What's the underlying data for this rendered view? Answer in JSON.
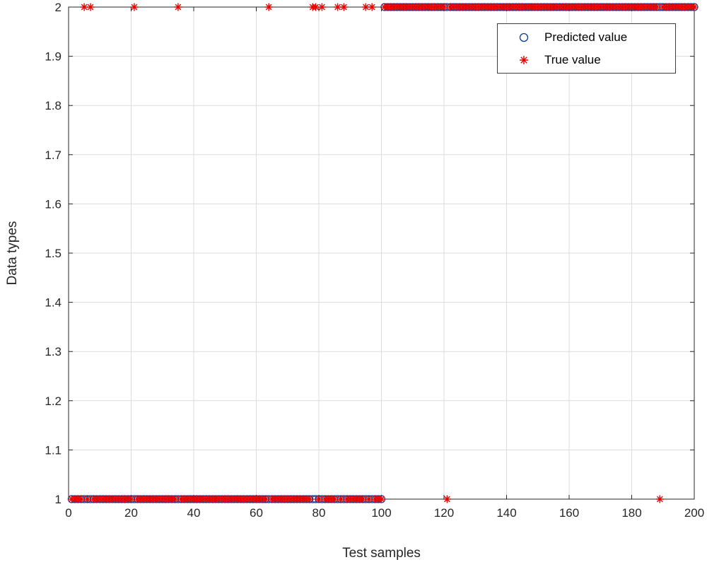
{
  "style": {
    "background": "#ffffff",
    "axis_color": "#262626",
    "grid_color": "#dcdcdc",
    "tick_label_color": "#262626",
    "legend_border_color": "#3c3c3c"
  },
  "chart_data": {
    "type": "scatter",
    "title": "",
    "xlabel": "Test samples",
    "ylabel": "Data types",
    "xlim": [
      0,
      200
    ],
    "ylim": [
      1,
      2
    ],
    "xticks": [
      0,
      20,
      40,
      60,
      80,
      100,
      120,
      140,
      160,
      180,
      200
    ],
    "xtick_labels": [
      "0",
      "20",
      "40",
      "60",
      "80",
      "100",
      "120",
      "140",
      "160",
      "180",
      "200"
    ],
    "yticks": [
      1,
      1.1,
      1.2,
      1.3,
      1.4,
      1.5,
      1.6,
      1.7,
      1.8,
      1.9,
      2
    ],
    "ytick_labels": [
      "1",
      "1.1",
      "1.2",
      "1.3",
      "1.4",
      "1.5",
      "1.6",
      "1.7",
      "1.8",
      "1.9",
      "2"
    ],
    "grid": true,
    "legend_position": "upper-right-inside",
    "series": [
      {
        "name": "Predicted value",
        "marker": "circle",
        "color": "#0b3d91",
        "description": "Predicted class per test sample: class 1 for samples 1-100, class 2 for samples 101-200",
        "segments": [
          {
            "x_start": 1,
            "x_end": 100,
            "y": 1
          },
          {
            "x_start": 101,
            "x_end": 200,
            "y": 2
          }
        ]
      },
      {
        "name": "True value",
        "marker": "asterisk",
        "color": "#e60000",
        "description": "True class per test sample: same as predicted except the listed exceptions (misclassified samples)",
        "segments": [
          {
            "x_start": 1,
            "x_end": 100,
            "y": 1
          },
          {
            "x_start": 101,
            "x_end": 200,
            "y": 2
          }
        ],
        "exceptions": [
          {
            "x": 5,
            "y": 2
          },
          {
            "x": 7,
            "y": 2
          },
          {
            "x": 21,
            "y": 2
          },
          {
            "x": 35,
            "y": 2
          },
          {
            "x": 64,
            "y": 2
          },
          {
            "x": 78,
            "y": 2
          },
          {
            "x": 79,
            "y": 2
          },
          {
            "x": 81,
            "y": 2
          },
          {
            "x": 86,
            "y": 2
          },
          {
            "x": 88,
            "y": 2
          },
          {
            "x": 95,
            "y": 2
          },
          {
            "x": 97,
            "y": 2
          },
          {
            "x": 121,
            "y": 1
          },
          {
            "x": 189,
            "y": 1
          }
        ]
      }
    ]
  }
}
